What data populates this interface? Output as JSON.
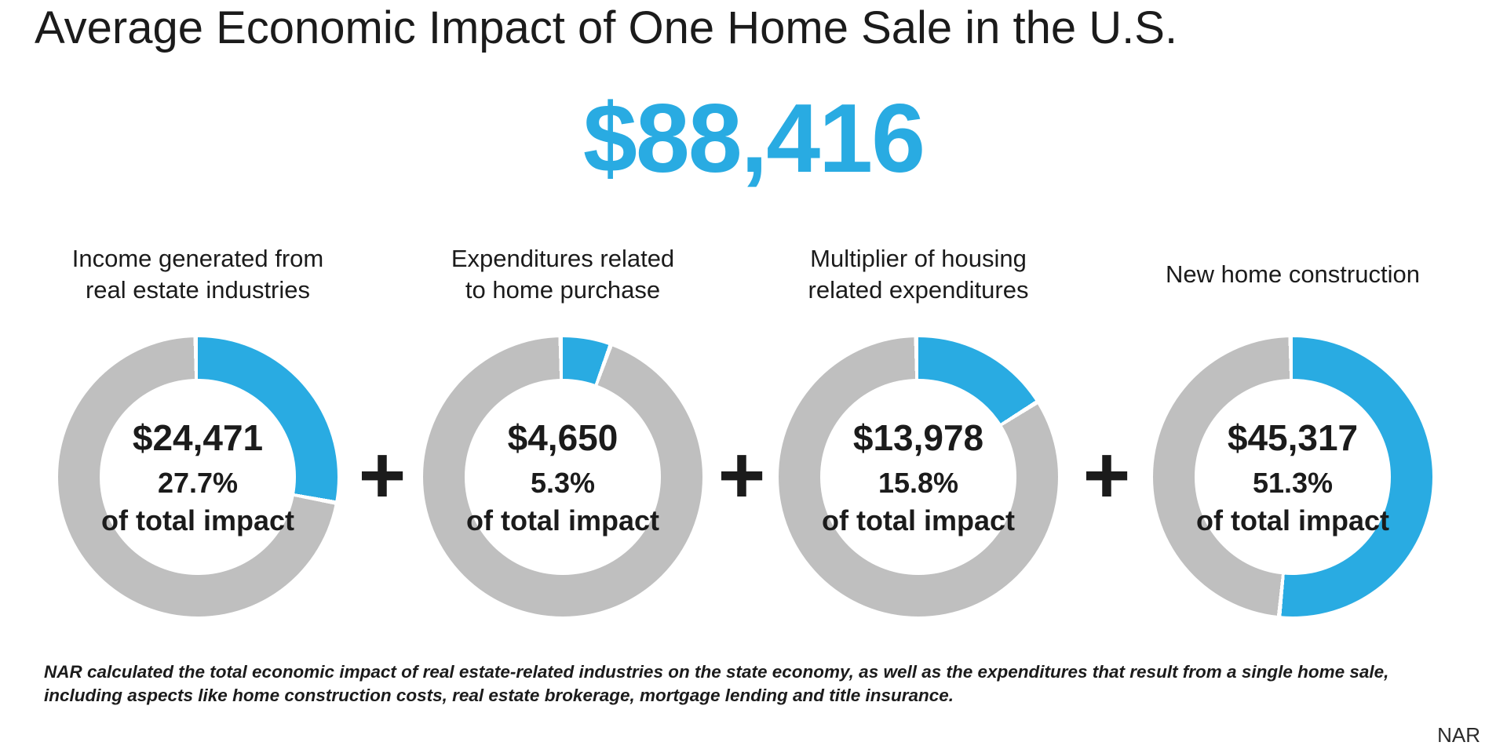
{
  "title": "Average Economic Impact of One Home Sale in the U.S.",
  "total_display": "$88,416",
  "operators": {
    "plus": "+"
  },
  "colors": {
    "accent": "#29ABE2",
    "remainder": "#BFBFBF",
    "text": "#1B1B1B"
  },
  "donuts": [
    {
      "label_line1": "Income generated from",
      "label_line2": "real estate industries",
      "value": "$24,471",
      "percent_display": "27.7%",
      "caption": "of total impact",
      "percent": 27.7
    },
    {
      "label_line1": "Expenditures related",
      "label_line2": "to home purchase",
      "value": "$4,650",
      "percent_display": "5.3%",
      "caption": "of total impact",
      "percent": 5.3
    },
    {
      "label_line1": "Multiplier of housing",
      "label_line2": "related expenditures",
      "value": "$13,978",
      "percent_display": "15.8%",
      "caption": "of total impact",
      "percent": 15.8
    },
    {
      "label_line1": "New home construction",
      "label_line2": "",
      "value": "$45,317",
      "percent_display": "51.3%",
      "caption": "of total impact",
      "percent": 51.3
    }
  ],
  "footnote": "NAR calculated the total economic impact of real estate-related industries on the state economy, as well as the expenditures that result from a single home sale, including aspects like home construction costs, real estate brokerage, mortgage lending and title insurance.",
  "source": "NAR",
  "chart_data": {
    "type": "pie",
    "subtype": "donut-multiples",
    "title": "Average Economic Impact of One Home Sale in the U.S.",
    "total_label": "$88,416",
    "total_value": 88416,
    "categories": [
      "Income generated from real estate industries",
      "Expenditures related to home purchase",
      "Multiplier of housing related expenditures",
      "New home construction"
    ],
    "values": [
      24471,
      4650,
      13978,
      45317
    ],
    "percents": [
      27.7,
      5.3,
      15.8,
      51.3
    ],
    "center_labels": [
      "$24,471",
      "$4,650",
      "$13,978",
      "$45,317"
    ],
    "slice_colors": {
      "highlighted_share": "#29ABE2",
      "remainder": "#BFBFBF"
    },
    "start_angle_deg": 0,
    "direction": "clockwise",
    "legend": "none"
  }
}
